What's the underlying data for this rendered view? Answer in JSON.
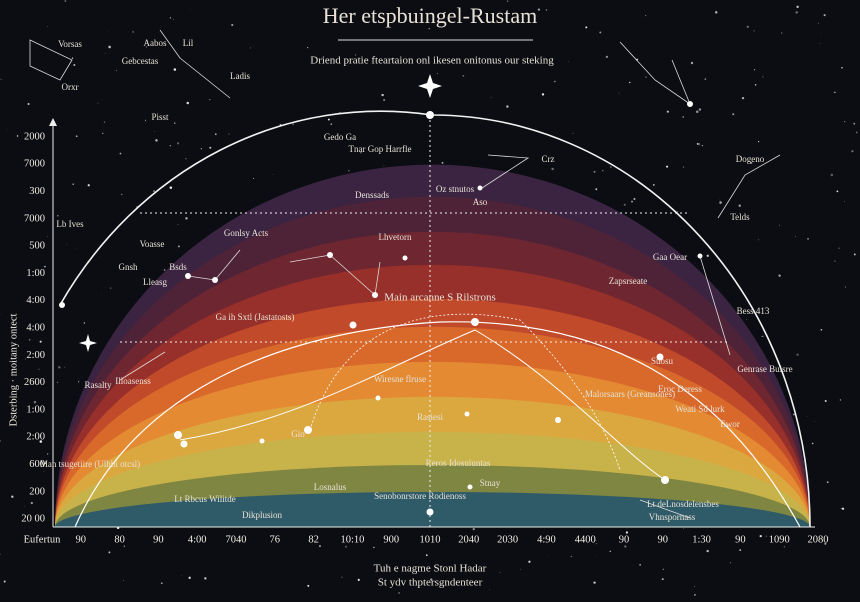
{
  "header": {
    "title": "Her etspbuingel-Rustam",
    "subtitle": "Driend pratie fteartaion onl ikesen onitonus our steking"
  },
  "axis": {
    "y_title": "Dsterbing · moitany ontect",
    "y_labels": [
      "2000",
      "7000",
      "300",
      "7000",
      "500",
      "1:00",
      "4:00",
      "4:00",
      "2:00",
      "2600",
      "1:00",
      "2:00",
      "600",
      "200",
      "20 00"
    ],
    "x_labels": [
      "Eufertun",
      "90",
      "80",
      "90",
      "4:00",
      "7040",
      "76",
      "82",
      "10:10",
      "900",
      "1010",
      "2040",
      "2030",
      "4:90",
      "4400",
      "90",
      "90",
      "1:30",
      "90",
      "1090",
      "2080"
    ]
  },
  "labels": [
    "Vorsas",
    "Gebcestas",
    "Orxr",
    "Pisst",
    "Aabos",
    "Lil",
    "Ladis",
    "Gedo Ga",
    "Tnar Gop Harrfle",
    "Denssads",
    "Oz stnutos",
    "Aso",
    "Crz",
    "Dogeno",
    "Telds",
    "Lb Ives",
    "Voasse",
    "Gonlsy Acts",
    "Lhvetorn",
    "Gaa Oear",
    "Zapsrseate",
    "Main arcanne S Rilstrons",
    "Ga ih Sxtl (Jastatosts)",
    "Bess 413",
    "Rasalty",
    "Illoasenss",
    "Wiresne flruse",
    "Malorsaars (Greansones)",
    "Rasiesi",
    "Eroc Deress",
    "Weati Sd lurk",
    "Genrase Buisre",
    "Man tsugetiire (Ulhbi otcsl)",
    "Reros Idosuiuntas",
    "Losnalus",
    "Senobonrstore Rodienoss",
    "Stnay",
    "Dikplusion",
    "Lt deLnosdelensbes",
    "Vhnspornass",
    "Lt Rbcus Wilitde",
    "Ewor",
    "Gio",
    "Lleasg",
    "Gnsh",
    "Bsds",
    "Suosu"
  ],
  "caption": [
    "Tuh e nagme Stonl Hadar",
    "St ydv thptersgndenteer"
  ]
}
